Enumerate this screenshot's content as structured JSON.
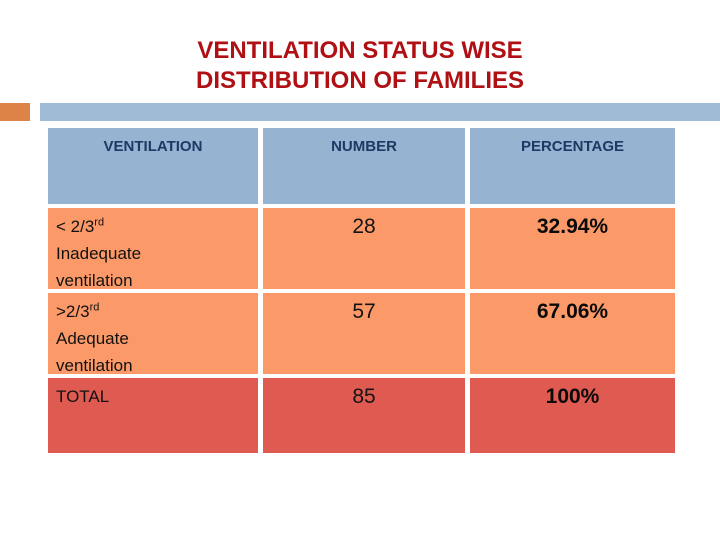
{
  "slide": {
    "title_line1": "VENTILATION STATUS WISE",
    "title_line2": "DISTRIBUTION OF FAMILIES",
    "title_color": "#B01013"
  },
  "decoration": {
    "orange_block_color": "#DD8347",
    "blue_bar_color": "#9FBBD6"
  },
  "table": {
    "headers": [
      "VENTILATION",
      "NUMBER",
      "PERCENTAGE"
    ],
    "header_bg": "#96B3D1",
    "header_text_color": "#1F3864",
    "row_bg": "#FB9A68",
    "total_bg": "#DF5A50",
    "rows": [
      {
        "label_prefix": "< 2/3",
        "label_sup": "rd",
        "label_line2": "Inadequate",
        "label_line3": "ventilation",
        "number": "28",
        "percentage": "32.94%"
      },
      {
        "label_prefix": ">2/3",
        "label_sup": "rd",
        "label_line2": "Adequate",
        "label_line3": "ventilation",
        "number": "57",
        "percentage": "67.06%"
      }
    ],
    "total": {
      "label": "TOTAL",
      "number": "85",
      "percentage": "100%"
    }
  },
  "chart_data": {
    "type": "table",
    "title": "VENTILATION STATUS WISE DISTRIBUTION OF FAMILIES",
    "columns": [
      "VENTILATION",
      "NUMBER",
      "PERCENTAGE"
    ],
    "rows": [
      [
        "< 2/3rd Inadequate ventilation",
        28,
        "32.94%"
      ],
      [
        ">2/3rd Adequate ventilation",
        57,
        "67.06%"
      ],
      [
        "TOTAL",
        85,
        "100%"
      ]
    ]
  }
}
